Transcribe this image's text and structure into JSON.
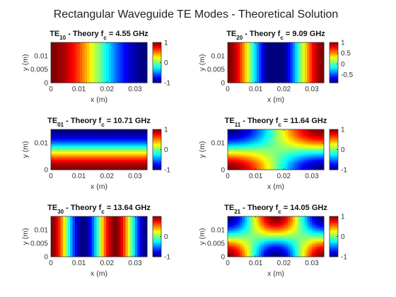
{
  "figure": {
    "title": "Rectangular Waveguide TE Modes - Theoretical Solution"
  },
  "chart_data": [
    {
      "type": "heatmap",
      "mode": {
        "m": 1,
        "n": 0
      },
      "title_prefix": "TE",
      "subscript": "10",
      "title_middle": " - Theory f",
      "title_sub_c": "c",
      "title_suffix": " = 4.55 GHz",
      "cutoff_ghz": 4.55,
      "xlabel": "x (m)",
      "ylabel": "y (m)",
      "xlim": [
        0,
        0.0343
      ],
      "ylim": [
        0,
        0.015
      ],
      "xticks": [
        "0",
        "0.01",
        "0.02",
        "0.03"
      ],
      "yticks": [
        "0",
        "0.005",
        "0.01"
      ],
      "colormap": "jet",
      "clim": [
        -1,
        1
      ],
      "colorbar_ticks": [
        "1",
        "0",
        "-1"
      ],
      "colorbar_values": [
        1,
        0,
        -1
      ]
    },
    {
      "type": "heatmap",
      "mode": {
        "m": 2,
        "n": 0
      },
      "title_prefix": "TE",
      "subscript": "20",
      "title_middle": " - Theory f",
      "title_sub_c": "c",
      "title_suffix": " = 9.09 GHz",
      "cutoff_ghz": 9.09,
      "xlabel": "x (m)",
      "ylabel": "y (m)",
      "xlim": [
        0,
        0.0343
      ],
      "ylim": [
        0,
        0.015
      ],
      "xticks": [
        "0",
        "0.01",
        "0.02",
        "0.03"
      ],
      "yticks": [
        "0",
        "0.005",
        "0.01"
      ],
      "colormap": "jet",
      "clim": [
        -0.87,
        1
      ],
      "colorbar_ticks": [
        "1",
        "0.5",
        "0",
        "-0.5"
      ],
      "colorbar_values": [
        1,
        0.5,
        0,
        -0.5
      ]
    },
    {
      "type": "heatmap",
      "mode": {
        "m": 0,
        "n": 1
      },
      "title_prefix": "TE",
      "subscript": "01",
      "title_middle": " - Theory f",
      "title_sub_c": "c",
      "title_suffix": " = 10.71 GHz",
      "cutoff_ghz": 10.71,
      "xlabel": "x (m)",
      "ylabel": "y (m)",
      "xlim": [
        0,
        0.0343
      ],
      "ylim": [
        0,
        0.015
      ],
      "xticks": [
        "0",
        "0.01",
        "0.02",
        "0.03"
      ],
      "yticks": [
        "0",
        "0.01"
      ],
      "colormap": "jet",
      "clim": [
        -1,
        1
      ],
      "colorbar_ticks": [
        "1",
        "0",
        "-1"
      ],
      "colorbar_values": [
        1,
        0,
        -1
      ]
    },
    {
      "type": "heatmap",
      "mode": {
        "m": 1,
        "n": 1
      },
      "title_prefix": "TE",
      "subscript": "11",
      "title_middle": " - Theory f",
      "title_sub_c": "c",
      "title_suffix": " = 11.64 GHz",
      "cutoff_ghz": 11.64,
      "xlabel": "x (m)",
      "ylabel": "y (m)",
      "xlim": [
        0,
        0.0343
      ],
      "ylim": [
        0,
        0.015
      ],
      "xticks": [
        "0",
        "0.01",
        "0.02",
        "0.03"
      ],
      "yticks": [
        "0",
        "0.01"
      ],
      "colormap": "jet",
      "clim": [
        -1,
        1
      ],
      "colorbar_ticks": [
        "1",
        "0",
        "-1"
      ],
      "colorbar_values": [
        1,
        0,
        -1
      ]
    },
    {
      "type": "heatmap",
      "mode": {
        "m": 3,
        "n": 0
      },
      "title_prefix": "TE",
      "subscript": "30",
      "title_middle": " - Theory f",
      "title_sub_c": "c",
      "title_suffix": " = 13.64 GHz",
      "cutoff_ghz": 13.64,
      "xlabel": "x (m)",
      "ylabel": "y (m)",
      "xlim": [
        0,
        0.0343
      ],
      "ylim": [
        0,
        0.015
      ],
      "xticks": [
        "0",
        "0.01",
        "0.02",
        "0.03"
      ],
      "yticks": [
        "0",
        "0.005",
        "0.01"
      ],
      "colormap": "jet",
      "clim": [
        -1,
        1
      ],
      "colorbar_ticks": [
        "0",
        "-1"
      ],
      "colorbar_values": [
        0,
        -1
      ]
    },
    {
      "type": "heatmap",
      "mode": {
        "m": 2,
        "n": 1
      },
      "title_prefix": "TE",
      "subscript": "21",
      "title_middle": " - Theory f",
      "title_sub_c": "c",
      "title_suffix": " = 14.05 GHz",
      "cutoff_ghz": 14.05,
      "xlabel": "x (m)",
      "ylabel": "y (m)",
      "xlim": [
        0,
        0.0343
      ],
      "ylim": [
        0,
        0.015
      ],
      "xticks": [
        "0",
        "0.01",
        "0.02",
        "0.03"
      ],
      "yticks": [
        "0",
        "0.005",
        "0.01"
      ],
      "colormap": "jet",
      "clim": [
        -1,
        1
      ],
      "colorbar_ticks": [
        "1",
        "0",
        "-1"
      ],
      "colorbar_values": [
        1,
        0,
        -1
      ]
    }
  ]
}
